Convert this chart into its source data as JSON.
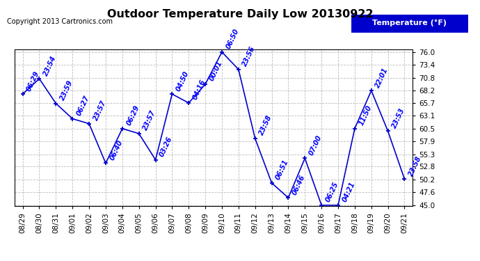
{
  "title": "Outdoor Temperature Daily Low 20130922",
  "copyright": "Copyright 2013 Cartronics.com",
  "legend_label": "Temperature (°F)",
  "bg_color": "#ffffff",
  "line_color": "#0000cc",
  "label_color": "#0000ff",
  "grid_color": "#bbbbbb",
  "dates": [
    "08/29",
    "08/30",
    "08/31",
    "09/01",
    "09/02",
    "09/03",
    "09/04",
    "09/05",
    "09/06",
    "09/07",
    "09/08",
    "09/09",
    "09/10",
    "09/11",
    "09/12",
    "09/13",
    "09/14",
    "09/15",
    "09/16",
    "09/17",
    "09/18",
    "09/19",
    "09/20",
    "09/21"
  ],
  "temps": [
    67.5,
    70.6,
    65.6,
    62.5,
    61.5,
    53.5,
    60.5,
    59.5,
    54.2,
    67.5,
    65.7,
    69.5,
    76.0,
    72.5,
    58.5,
    49.5,
    46.5,
    54.5,
    45.0,
    45.0,
    60.5,
    68.2,
    60.0,
    50.3
  ],
  "times": [
    "06:29",
    "23:54",
    "23:59",
    "06:27",
    "23:57",
    "06:40",
    "06:29",
    "23:57",
    "03:26",
    "04:50",
    "04:16",
    "00:01",
    "06:50",
    "23:56",
    "23:58",
    "06:51",
    "06:46",
    "07:00",
    "06:25",
    "04:21",
    "11:50",
    "22:01",
    "23:53",
    "23:58"
  ],
  "ylim": [
    44.8,
    76.5
  ],
  "yticks": [
    45.0,
    47.6,
    50.2,
    52.8,
    55.3,
    57.9,
    60.5,
    63.1,
    65.7,
    68.2,
    70.8,
    73.4,
    76.0
  ],
  "title_fontsize": 11.5,
  "copyright_fontsize": 7,
  "annot_fontsize": 7,
  "tick_fontsize": 7.5
}
